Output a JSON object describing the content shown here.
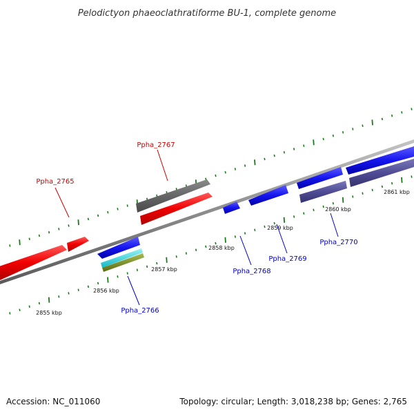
{
  "title": "Pelodictyon phaeoclathratiforme BU-1, complete genome",
  "footer": {
    "accession": "Accession: NC_011060",
    "summary": "Topology: circular; Length: 3,018,238 bp; Genes: 2,765"
  },
  "colors": {
    "forward_label": "#cc0000",
    "reverse_label": "#0000cc",
    "tick": "#1a7a1a",
    "backbone": "#8c8c8c"
  },
  "scale_labels": [
    "2855 kbp",
    "2856 kbp",
    "2857 kbp",
    "2858 kbp",
    "2859 kbp",
    "2860 kbp",
    "2861 kbp"
  ],
  "gene_labels": [
    {
      "name": "Ppha_2765",
      "strand": "forward"
    },
    {
      "name": "Ppha_2767",
      "strand": "forward"
    },
    {
      "name": "Ppha_2766",
      "strand": "reverse"
    },
    {
      "name": "Ppha_2768",
      "strand": "reverse"
    },
    {
      "name": "Ppha_2769",
      "strand": "reverse"
    },
    {
      "name": "Ppha_2770",
      "strand": "reverse"
    }
  ]
}
